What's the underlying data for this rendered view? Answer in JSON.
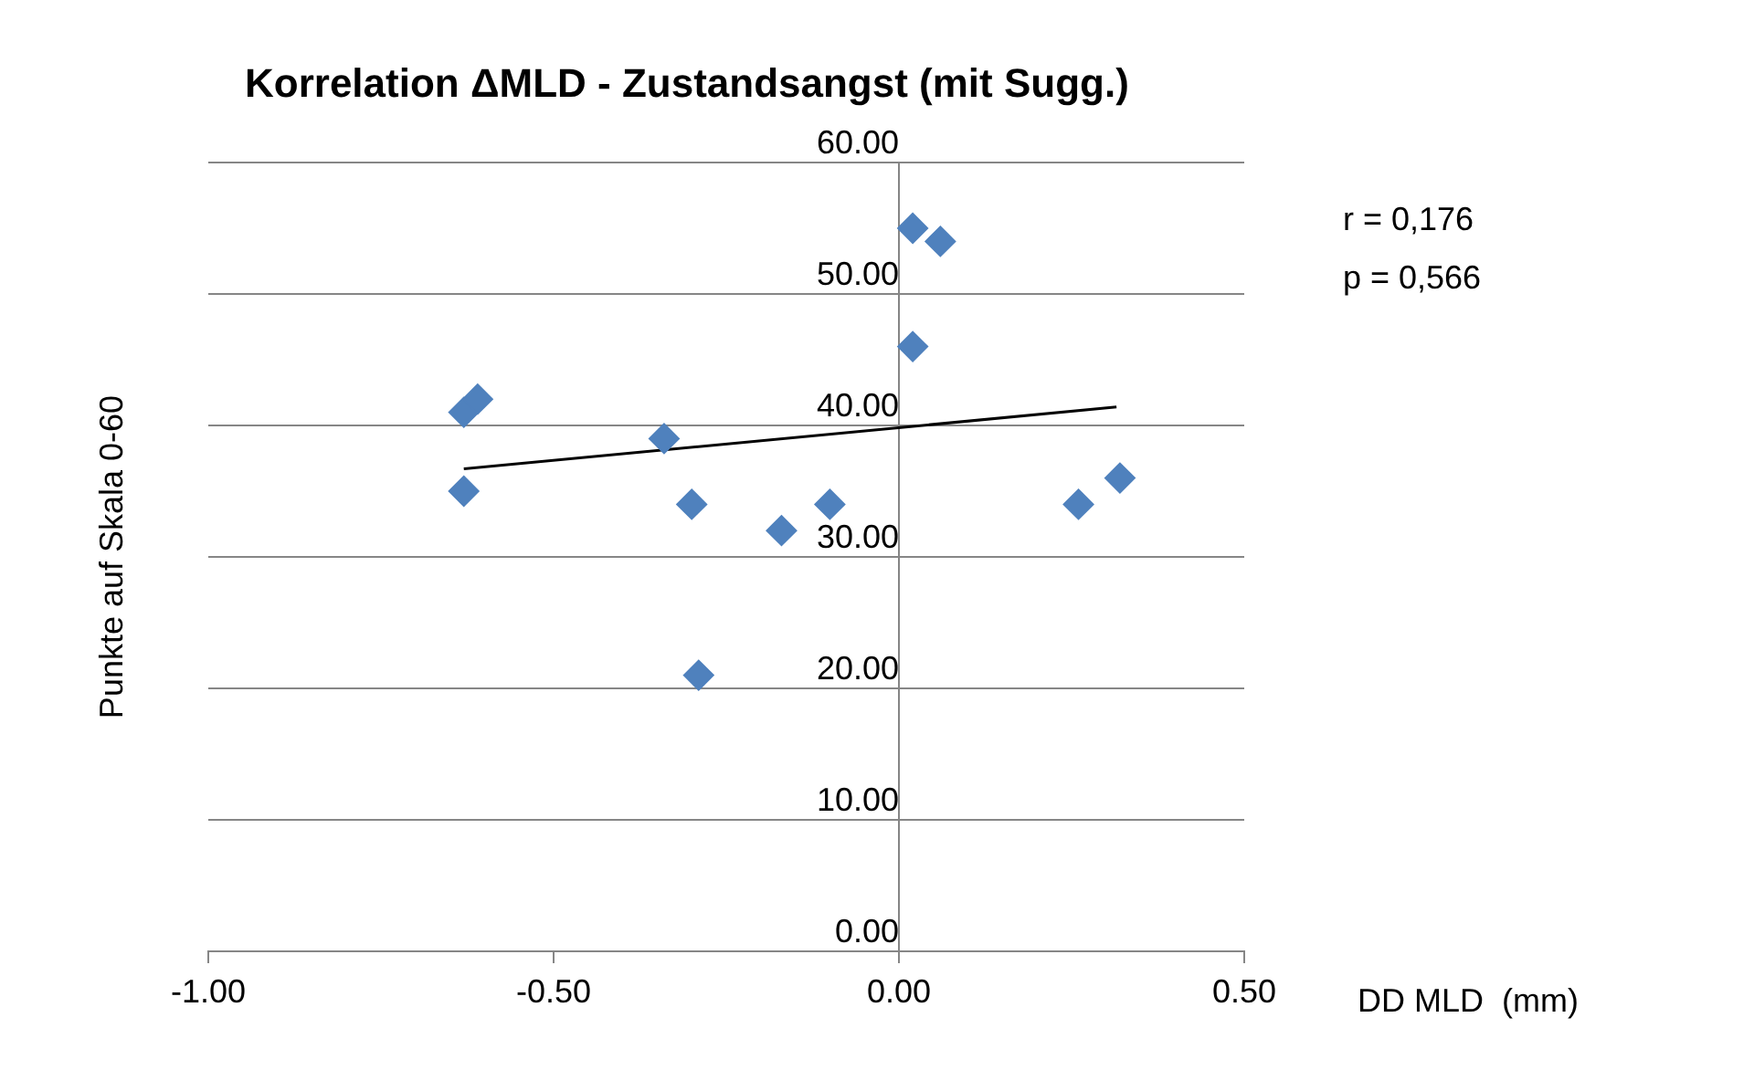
{
  "chart_data": {
    "type": "scatter",
    "title": "Korrelation ΔMLD - Zustandsangst (mit Sugg.)",
    "xlabel": "DD MLD  (mm)",
    "ylabel": "Punkte auf Skala 0-60",
    "annotations": [
      "r = 0,176",
      "p = 0,566"
    ],
    "series": [
      {
        "type": "scatter",
        "color": "#4f81bd",
        "marker": "diamond",
        "x": [
          -0.63,
          -0.63,
          -0.61,
          -0.34,
          -0.3,
          -0.29,
          -0.17,
          -0.1,
          0.02,
          0.06,
          0.02,
          0.26,
          0.32
        ],
        "values": [
          35,
          41,
          42,
          39,
          34,
          21,
          32,
          34,
          55,
          54,
          46,
          34,
          36
        ]
      },
      {
        "type": "line",
        "color": "#000000",
        "marker": "none",
        "x": [
          -0.63,
          0.315
        ],
        "values": [
          36.7,
          41.4
        ]
      }
    ],
    "xlim": [
      -1,
      0.5
    ],
    "xticks": [
      {
        "value": -1,
        "label": "-1.00"
      },
      {
        "value": -0.5,
        "label": "-0.50"
      },
      {
        "value": 0,
        "label": "0.00"
      },
      {
        "value": 0.5,
        "label": "0.50"
      }
    ],
    "ylim": [
      0,
      60
    ],
    "yticks": [
      {
        "value": 0,
        "label": "0.00"
      },
      {
        "value": 10,
        "label": "10.00"
      },
      {
        "value": 20,
        "label": "20.00"
      },
      {
        "value": 30,
        "label": "30.00"
      },
      {
        "value": 40,
        "label": "40.00"
      },
      {
        "value": 50,
        "label": "50.00"
      },
      {
        "value": 60,
        "label": "60.00"
      }
    ],
    "grid": "y",
    "legend": false
  }
}
